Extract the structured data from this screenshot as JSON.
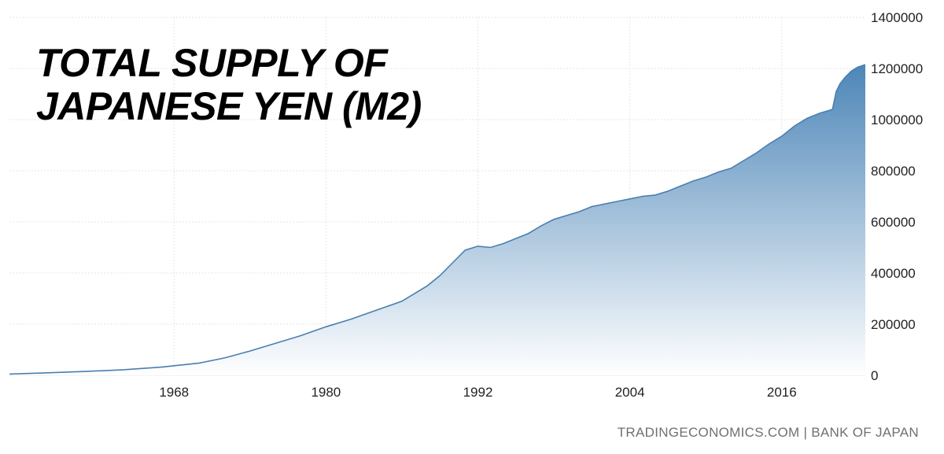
{
  "title": {
    "line1": "TOTAL SUPPLY OF",
    "line2": "JAPANESE YEN (M2)"
  },
  "source": "TRADINGECONOMICS.COM  |  BANK OF JAPAN",
  "colors": {
    "line": "#4a7fb0",
    "fill_top": "#4d86b8",
    "fill_bottom": "#ffffff",
    "grid": "#e6e6e6",
    "text": "#222222"
  },
  "chart_data": {
    "type": "area",
    "xlim": [
      1955,
      2022.6
    ],
    "ylim": [
      0,
      1400000
    ],
    "grid": true,
    "y_axis_side": "right",
    "yticks": [
      0,
      200000,
      400000,
      600000,
      800000,
      1000000,
      1200000,
      1400000
    ],
    "ytick_labels": [
      "0",
      "200000",
      "400000",
      "600000",
      "800000",
      "1000000",
      "1200000",
      "1400000"
    ],
    "xticks": [
      1968,
      1980,
      1992,
      2004,
      2016
    ],
    "xtick_labels": [
      "1968",
      "1980",
      "1992",
      "2004",
      "2016"
    ],
    "series": [
      {
        "x": [
          1955,
          1958,
          1961,
          1964,
          1967,
          1970,
          1972,
          1974,
          1976,
          1978,
          1980,
          1982,
          1984,
          1986,
          1988,
          1989,
          1990,
          1991,
          1992,
          1993,
          1994,
          1995,
          1996,
          1997,
          1998,
          1999,
          2000,
          2001,
          2002,
          2003,
          2004,
          2005,
          2006,
          2007,
          2008,
          2009,
          2010,
          2011,
          2012,
          2013,
          2014,
          2015,
          2016,
          2017,
          2018,
          2019,
          2020,
          2020.3,
          2020.6,
          2021,
          2021.5,
          2022,
          2022.6
        ],
        "values": [
          5000,
          10000,
          15000,
          22000,
          32000,
          48000,
          68000,
          95000,
          125000,
          155000,
          190000,
          220000,
          255000,
          290000,
          350000,
          390000,
          440000,
          490000,
          505000,
          500000,
          515000,
          535000,
          555000,
          585000,
          610000,
          625000,
          640000,
          660000,
          670000,
          680000,
          690000,
          700000,
          705000,
          720000,
          740000,
          760000,
          775000,
          795000,
          810000,
          840000,
          870000,
          905000,
          935000,
          975000,
          1005000,
          1025000,
          1040000,
          1110000,
          1140000,
          1165000,
          1190000,
          1205000,
          1215000
        ]
      }
    ]
  }
}
